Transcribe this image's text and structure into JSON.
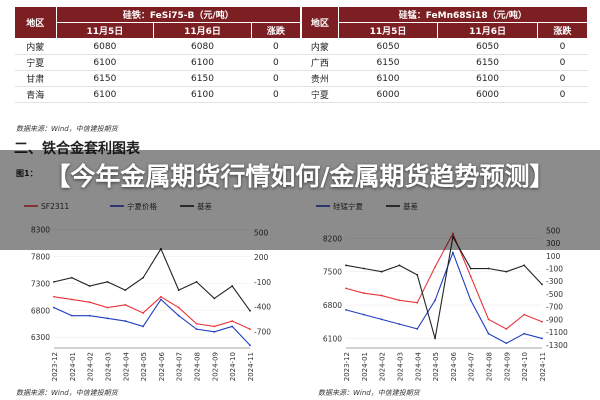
{
  "tables": [
    {
      "group_header": "硅铁：FeSi75-B（元/吨）",
      "col_region": "地区",
      "col_d1": "11月5日",
      "col_d2": "11月6日",
      "col_chg": "涨跌",
      "rows": [
        {
          "region": "内蒙",
          "d1": "6080",
          "d2": "6080",
          "chg": "0"
        },
        {
          "region": "宁夏",
          "d1": "6100",
          "d2": "6100",
          "chg": "0"
        },
        {
          "region": "甘肃",
          "d1": "6150",
          "d2": "6150",
          "chg": "0"
        },
        {
          "region": "青海",
          "d1": "6100",
          "d2": "6100",
          "chg": "0"
        }
      ]
    },
    {
      "group_header": "硅锰：FeMn68Si18（元/吨）",
      "col_region": "地区",
      "col_d1": "11月5日",
      "col_d2": "11月6日",
      "col_chg": "涨跌",
      "rows": [
        {
          "region": "内蒙",
          "d1": "6050",
          "d2": "6050",
          "chg": "0"
        },
        {
          "region": "广西",
          "d1": "6150",
          "d2": "6150",
          "chg": "0"
        },
        {
          "region": "贵州",
          "d1": "6100",
          "d2": "6100",
          "chg": "0"
        },
        {
          "region": "宁夏",
          "d1": "6000",
          "d2": "6000",
          "chg": "0"
        }
      ]
    }
  ],
  "source_top": "数据来源：Wind，中信建投期货",
  "source_bottom": "数据来源：Wind，中信建投期货",
  "section_title": "二、铁合金套利图表",
  "overlay_title": "【今年金属期货行情如何/金属期货趋势预测】",
  "chart_data": [
    {
      "type": "line",
      "title": "图1：",
      "legend": [
        "SF2311",
        "宁夏价格",
        "基差"
      ],
      "categories": [
        "2023-12",
        "2024-01",
        "2024-02",
        "2024-03",
        "2024-04",
        "2024-05",
        "2024-06",
        "2024-07",
        "2024-08",
        "2024-09",
        "2024-10",
        "2024-11"
      ],
      "yticks_left": [
        6300,
        6800,
        7300,
        7800,
        8300
      ],
      "yticks_right": [
        -700,
        -400,
        -100,
        200,
        500
      ],
      "ylim_left": [
        6100,
        8400
      ],
      "ylim_right": [
        -900,
        600
      ],
      "series": [
        {
          "name": "SF2311",
          "axis": "left",
          "color": "#e8343a",
          "values": [
            7050,
            7000,
            6950,
            6850,
            6900,
            6750,
            7050,
            6850,
            6550,
            6500,
            6600,
            6450
          ]
        },
        {
          "name": "宁夏价格",
          "axis": "left",
          "color": "#1f3fbf",
          "values": [
            6850,
            6700,
            6700,
            6650,
            6600,
            6500,
            7000,
            6700,
            6450,
            6400,
            6500,
            6150
          ]
        },
        {
          "name": "基差",
          "axis": "right",
          "color": "#222222",
          "values": [
            -100,
            -50,
            -150,
            -100,
            -200,
            -50,
            300,
            -200,
            -100,
            -300,
            -150,
            -450
          ]
        }
      ]
    },
    {
      "type": "line",
      "legend": [
        "硅锰宁夏",
        "基差"
      ],
      "categories": [
        "2023-12",
        "2024-01",
        "2024-02",
        "2024-03",
        "2024-04",
        "2024-05",
        "2024-06",
        "2024-07",
        "2024-08",
        "2024-09",
        "2024-10",
        "2024-11"
      ],
      "yticks_left": [
        6100,
        6800,
        7500,
        8200
      ],
      "yticks_right": [
        -1300,
        -1100,
        -900,
        -700,
        -500,
        -300,
        -100,
        100,
        300,
        500
      ],
      "ylim_left": [
        5900,
        8500
      ],
      "ylim_right": [
        -1350,
        600
      ],
      "series": [
        {
          "name": "红线",
          "axis": "left",
          "color": "#e8343a",
          "values": [
            7150,
            7050,
            7000,
            6900,
            6850,
            7600,
            8300,
            7400,
            6500,
            6300,
            6600,
            6450
          ]
        },
        {
          "name": "硅锰宁夏",
          "axis": "left",
          "color": "#1f3fbf",
          "values": [
            6700,
            6600,
            6500,
            6400,
            6300,
            6900,
            7900,
            6900,
            6200,
            6000,
            6200,
            6100
          ]
        },
        {
          "name": "基差",
          "axis": "right",
          "color": "#222222",
          "values": [
            -50,
            -100,
            -150,
            -50,
            -200,
            -1200,
            400,
            -100,
            -100,
            -150,
            -50,
            -350
          ]
        }
      ]
    }
  ]
}
